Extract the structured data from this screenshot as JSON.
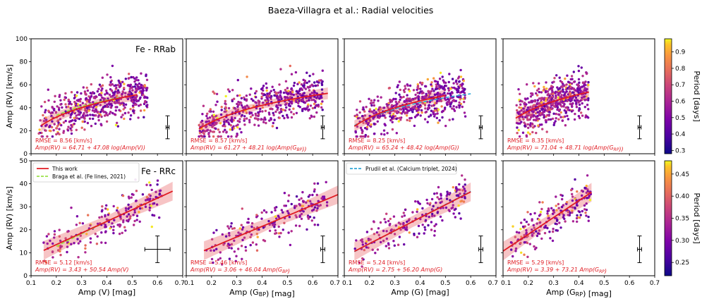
{
  "page_header": "Baeza-Villagra et al.: Radial velocities",
  "colors": {
    "fit_line": "#e01b22",
    "fit_band": "#f2a4a6",
    "braga_line": "#9be14a",
    "prudil_line": "#2fa6d6"
  },
  "chart_data": [
    {
      "type": "scatter",
      "id": "rrab-v",
      "row": 0,
      "col": 0,
      "title": "Fe - RRab",
      "xlabel": "",
      "ylabel": "Amp (RV) [km/s]",
      "xlim": [
        0.1,
        0.7
      ],
      "ylim": [
        0,
        100
      ],
      "xticks": [
        "0.1",
        "0.2",
        "0.3",
        "0.4",
        "0.5",
        "0.6",
        "0.7"
      ],
      "yticks": [
        "0",
        "20",
        "40",
        "60",
        "80",
        "100"
      ],
      "rmse": "RMSE = 8.56 [km/s]",
      "equation": "Amp(RV) = 64.71 + 47.08 log(Amp(V))",
      "fit": {
        "form": "log",
        "a": 64.71,
        "b": 47.08,
        "x_range": [
          0.14,
          0.52
        ]
      },
      "braga_fit": {
        "form": "log",
        "a": 64.2,
        "b": 44.0,
        "x_range": [
          0.2,
          0.45
        ]
      },
      "error_bar": {
        "x": 0.64,
        "y": 23,
        "xerr": 0.006,
        "yerr": 10
      },
      "cloud": {
        "n": 560,
        "seed": 11,
        "x_range": [
          0.13,
          0.56
        ],
        "scatter": 9,
        "period_range": [
          0.28,
          0.98
        ],
        "ymin": 15,
        "ymax": 99
      }
    },
    {
      "type": "scatter",
      "id": "rrab-bp",
      "row": 0,
      "col": 1,
      "title": "",
      "xlabel": "",
      "ylabel": "",
      "xlim": [
        0.1,
        0.7
      ],
      "ylim": [
        0,
        100
      ],
      "xticks": [
        "0.1",
        "0.2",
        "0.3",
        "0.4",
        "0.5",
        "0.6",
        "0.7"
      ],
      "yticks": [
        "0",
        "20",
        "40",
        "60",
        "80",
        "100"
      ],
      "rmse": "RMSE = 8.57 [km/s]",
      "equation": "Amp(RV) = 61.27 + 48.21 log(Amp(G_BP))",
      "fit": {
        "form": "log",
        "a": 61.27,
        "b": 48.21,
        "x_range": [
          0.15,
          0.66
        ]
      },
      "error_bar": {
        "x": 0.64,
        "y": 23,
        "xerr": 0.006,
        "yerr": 10
      },
      "cloud": {
        "n": 560,
        "seed": 23,
        "x_range": [
          0.15,
          0.64
        ],
        "scatter": 9,
        "period_range": [
          0.28,
          0.98
        ],
        "ymin": 15,
        "ymax": 99
      }
    },
    {
      "type": "scatter",
      "id": "rrab-g",
      "row": 0,
      "col": 2,
      "title": "",
      "xlabel": "",
      "ylabel": "",
      "xlim": [
        0.1,
        0.7
      ],
      "ylim": [
        0,
        100
      ],
      "xticks": [
        "0.1",
        "0.2",
        "0.3",
        "0.4",
        "0.5",
        "0.6",
        "0.7"
      ],
      "yticks": [
        "0",
        "20",
        "40",
        "60",
        "80",
        "100"
      ],
      "rmse": "RMSE = 8.25 [km/s]",
      "equation": "Amp(RV) = 65.24 + 48.42 log(Amp(G))",
      "fit": {
        "form": "log",
        "a": 65.24,
        "b": 48.42,
        "x_range": [
          0.14,
          0.5
        ]
      },
      "prudil_fit": {
        "form": "log",
        "a": 62.0,
        "b": 44.0,
        "x_range": [
          0.14,
          0.6
        ]
      },
      "error_bar": {
        "x": 0.64,
        "y": 23,
        "xerr": 0.006,
        "yerr": 10
      },
      "cloud": {
        "n": 560,
        "seed": 37,
        "x_range": [
          0.14,
          0.58
        ],
        "scatter": 9,
        "period_range": [
          0.28,
          0.98
        ],
        "ymin": 15,
        "ymax": 99
      }
    },
    {
      "type": "scatter",
      "id": "rrab-rp",
      "row": 0,
      "col": 3,
      "title": "",
      "xlabel": "",
      "ylabel": "",
      "xlim": [
        0.1,
        0.7
      ],
      "ylim": [
        0,
        100
      ],
      "xticks": [
        "0.1",
        "0.2",
        "0.3",
        "0.4",
        "0.5",
        "0.6",
        "0.7"
      ],
      "yticks": [
        "0",
        "20",
        "40",
        "60",
        "80",
        "100"
      ],
      "rmse": "RMSE = 8.35 [km/s]",
      "equation": "Amp(RV) = 71.04 + 48.71 log(Amp(G_RP))",
      "fit": {
        "form": "log",
        "a": 71.04,
        "b": 48.71,
        "x_range": [
          0.15,
          0.44
        ]
      },
      "error_bar": {
        "x": 0.64,
        "y": 23,
        "xerr": 0.006,
        "yerr": 10
      },
      "cloud": {
        "n": 560,
        "seed": 53,
        "x_range": [
          0.15,
          0.44
        ],
        "scatter": 9,
        "period_range": [
          0.28,
          0.98
        ],
        "ymin": 15,
        "ymax": 99
      }
    },
    {
      "type": "scatter",
      "id": "rrc-v",
      "row": 1,
      "col": 0,
      "title": "Fe - RRc",
      "xlabel": "Amp (V) [mag]",
      "ylabel": "Amp (RV) [km/s]",
      "xlim": [
        0.1,
        0.7
      ],
      "ylim": [
        0,
        50
      ],
      "xticks": [
        "0.1",
        "0.2",
        "0.3",
        "0.4",
        "0.5",
        "0.6",
        "0.7"
      ],
      "yticks": [
        "0",
        "10",
        "20",
        "30",
        "40",
        "50"
      ],
      "rmse": "RMSE = 5.12 [km/s]",
      "equation": "Amp(RV) = 3.43 + 50.54 Amp(V)",
      "fit": {
        "form": "lin",
        "a": 3.43,
        "b": 50.54,
        "x_range": [
          0.15,
          0.66
        ]
      },
      "braga_fit": {
        "form": "lin",
        "a": 2.0,
        "b": 54.0,
        "x_range": [
          0.2,
          0.45
        ]
      },
      "error_bar": {
        "x": 0.6,
        "y": 11.5,
        "xerr": 0.05,
        "yerr": 5.8
      },
      "cloud": {
        "n": 200,
        "seed": 71,
        "x_range": [
          0.14,
          0.62
        ],
        "scatter": 4.5,
        "period_range": [
          0.22,
          0.48
        ],
        "ymin": 4,
        "ymax": 48
      }
    },
    {
      "type": "scatter",
      "id": "rrc-bp",
      "row": 1,
      "col": 1,
      "title": "",
      "xlabel": "Amp (G_BP) [mag]",
      "ylabel": "",
      "xlim": [
        0.1,
        0.7
      ],
      "ylim": [
        0,
        50
      ],
      "xticks": [
        "0.1",
        "0.2",
        "0.3",
        "0.4",
        "0.5",
        "0.6",
        "0.7"
      ],
      "yticks": [
        "0",
        "10",
        "20",
        "30",
        "40",
        "50"
      ],
      "rmse": "RMSE = 5.46 [km/s]",
      "equation": "Amp(RV) = 3.06 + 46.04 Amp(G_BP)",
      "fit": {
        "form": "lin",
        "a": 3.06,
        "b": 46.04,
        "x_range": [
          0.17,
          0.72
        ]
      },
      "error_bar": {
        "x": 0.64,
        "y": 11.5,
        "xerr": 0.008,
        "yerr": 5.8
      },
      "cloud": {
        "n": 200,
        "seed": 83,
        "x_range": [
          0.17,
          0.66
        ],
        "scatter": 4.5,
        "period_range": [
          0.22,
          0.48
        ],
        "ymin": 4,
        "ymax": 48
      }
    },
    {
      "type": "scatter",
      "id": "rrc-g",
      "row": 1,
      "col": 2,
      "title": "",
      "xlabel": "Amp (G) [mag]",
      "ylabel": "",
      "xlim": [
        0.1,
        0.7
      ],
      "ylim": [
        0,
        50
      ],
      "xticks": [
        "0.1",
        "0.2",
        "0.3",
        "0.4",
        "0.5",
        "0.6",
        "0.7"
      ],
      "yticks": [
        "0",
        "10",
        "20",
        "30",
        "40",
        "50"
      ],
      "rmse": "RMSE = 5.24 [km/s]",
      "equation": "Amp(RV) = 2.75 + 56.20 Amp(G)",
      "fit": {
        "form": "lin",
        "a": 2.75,
        "b": 56.2,
        "x_range": [
          0.14,
          0.6
        ]
      },
      "prudil_fit": {
        "form": "lin",
        "a": 2.5,
        "b": 57.0,
        "x_range": [
          0.14,
          0.6
        ]
      },
      "error_bar": {
        "x": 0.64,
        "y": 11.5,
        "xerr": 0.008,
        "yerr": 5.8
      },
      "cloud": {
        "n": 200,
        "seed": 97,
        "x_range": [
          0.14,
          0.58
        ],
        "scatter": 4.5,
        "period_range": [
          0.22,
          0.48
        ],
        "ymin": 4,
        "ymax": 48
      }
    },
    {
      "type": "scatter",
      "id": "rrc-rp",
      "row": 1,
      "col": 3,
      "title": "",
      "xlabel": "Amp (G_RP) [mag]",
      "ylabel": "",
      "xlim": [
        0.1,
        0.7
      ],
      "ylim": [
        0,
        50
      ],
      "xticks": [
        "0.1",
        "0.2",
        "0.3",
        "0.4",
        "0.5",
        "0.6",
        "0.7"
      ],
      "yticks": [
        "0",
        "10",
        "20",
        "30",
        "40",
        "50"
      ],
      "rmse": "RMSE = 5.29 [km/s]",
      "equation": "Amp(RV) = 3.39 + 73.21 Amp(G_RP)",
      "fit": {
        "form": "lin",
        "a": 3.39,
        "b": 73.21,
        "x_range": [
          0.1,
          0.45
        ]
      },
      "error_bar": {
        "x": 0.64,
        "y": 11.5,
        "xerr": 0.008,
        "yerr": 5.8
      },
      "cloud": {
        "n": 200,
        "seed": 109,
        "x_range": [
          0.12,
          0.45
        ],
        "scatter": 4.5,
        "period_range": [
          0.22,
          0.48
        ],
        "ymin": 4,
        "ymax": 48
      }
    }
  ],
  "legends": [
    {
      "panel": "rrc-v",
      "items": [
        {
          "label": "This work",
          "style": "solid",
          "color": "#e01b22"
        },
        {
          "label": "Braga et al. (Fe lines, 2021)",
          "style": "dashed",
          "color": "#9be14a"
        }
      ]
    },
    {
      "panel": "rrc-g",
      "items": [
        {
          "label": "Prudil et al. (Calcium triplet, 2024)",
          "style": "dashed",
          "color": "#2fa6d6"
        }
      ]
    }
  ],
  "colorbars": [
    {
      "id": "cb-rrab",
      "label": "Period [days]",
      "range": [
        0.28,
        0.98
      ],
      "ticks": [
        0.3,
        0.4,
        0.5,
        0.6,
        0.7,
        0.8,
        0.9
      ],
      "tick_labels": [
        "0.3",
        "0.4",
        "0.5",
        "0.6",
        "0.7",
        "0.8",
        "0.9"
      ]
    },
    {
      "id": "cb-rrc",
      "label": "Period [days]",
      "range": [
        0.22,
        0.48
      ],
      "ticks": [
        0.25,
        0.3,
        0.35,
        0.4,
        0.45
      ],
      "tick_labels": [
        "0.25",
        "0.30",
        "0.35",
        "0.40",
        "0.45"
      ]
    }
  ]
}
